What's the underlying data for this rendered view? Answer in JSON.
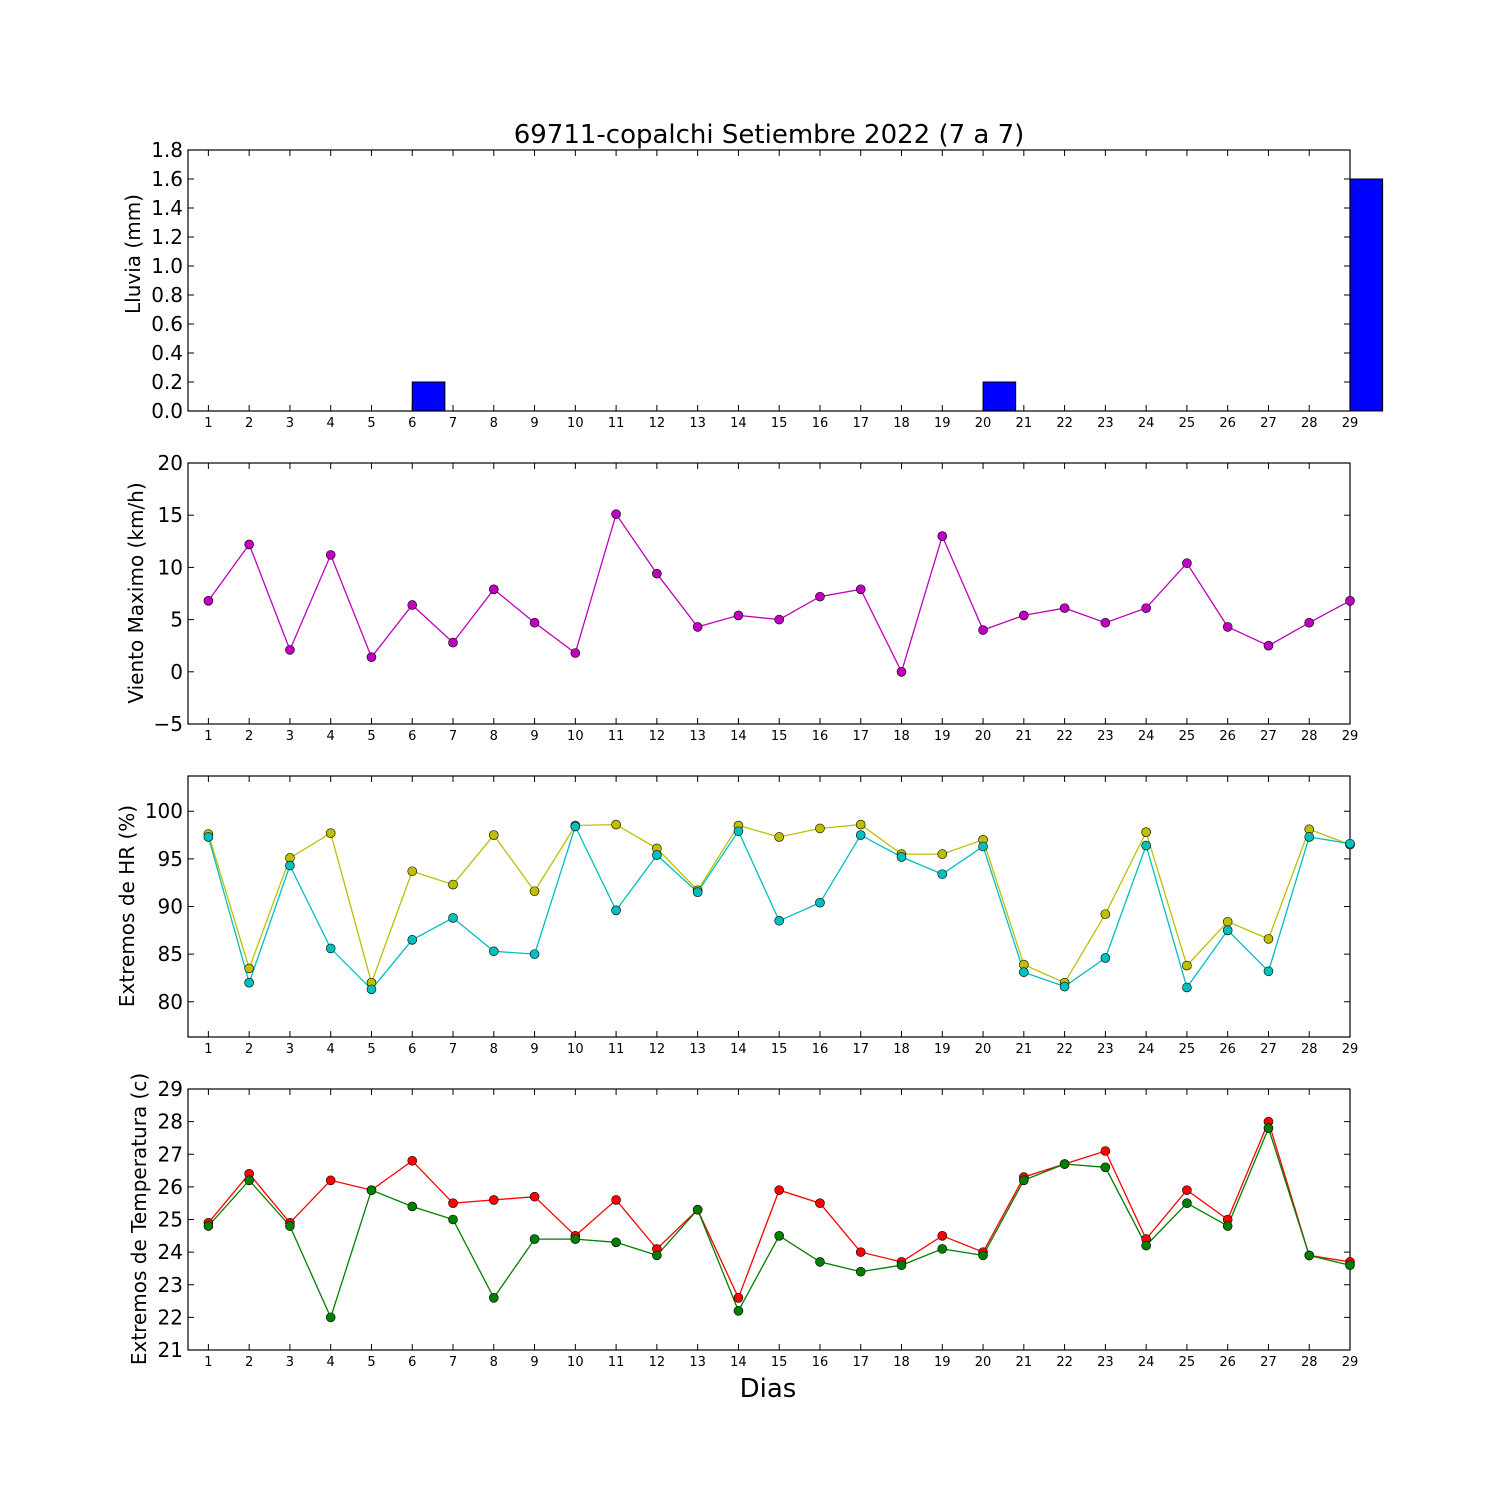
{
  "figure": {
    "title": "69711-copalchi Setiembre 2022  (7 a 7)",
    "xlabel": "Dias"
  },
  "chart_data": [
    {
      "type": "bar",
      "ylabel": "Lluvia (mm)",
      "categories": [
        1,
        2,
        3,
        4,
        5,
        6,
        7,
        8,
        9,
        10,
        11,
        12,
        13,
        14,
        15,
        16,
        17,
        18,
        19,
        20,
        21,
        22,
        23,
        24,
        25,
        26,
        27,
        28,
        29
      ],
      "ylim": [
        0,
        1.8
      ],
      "yticks": [
        "0.0",
        "0.2",
        "0.4",
        "0.6",
        "0.8",
        "1.0",
        "1.2",
        "1.4",
        "1.6",
        "1.8"
      ],
      "grid": false,
      "series": [
        {
          "color": "#0000ff",
          "values": [
            0,
            0,
            0,
            0,
            0,
            0.2,
            0,
            0,
            0,
            0,
            0,
            0,
            0,
            0,
            0,
            0,
            0,
            0,
            0,
            0.2,
            0,
            0,
            0,
            0,
            0,
            0,
            0,
            0,
            1.6
          ]
        }
      ]
    },
    {
      "type": "line",
      "ylabel": "Viento Maximo (km/h)",
      "categories": [
        1,
        2,
        3,
        4,
        5,
        6,
        7,
        8,
        9,
        10,
        11,
        12,
        13,
        14,
        15,
        16,
        17,
        18,
        19,
        20,
        21,
        22,
        23,
        24,
        25,
        26,
        27,
        28,
        29
      ],
      "ylim": [
        -5,
        20
      ],
      "yticks": [
        "−5",
        "0",
        "5",
        "10",
        "15",
        "20"
      ],
      "grid": false,
      "series": [
        {
          "color": "#bf00bf",
          "values": [
            6.8,
            12.2,
            2.1,
            11.2,
            1.4,
            6.4,
            2.8,
            7.9,
            4.7,
            1.8,
            15.1,
            9.4,
            4.3,
            5.4,
            5.0,
            7.2,
            7.9,
            0.0,
            13.0,
            4.0,
            5.4,
            6.1,
            4.7,
            6.1,
            10.4,
            4.3,
            2.5,
            4.7,
            6.8
          ]
        }
      ]
    },
    {
      "type": "line",
      "ylabel": "Extremos de HR (%)",
      "categories": [
        1,
        2,
        3,
        4,
        5,
        6,
        7,
        8,
        9,
        10,
        11,
        12,
        13,
        14,
        15,
        16,
        17,
        18,
        19,
        20,
        21,
        22,
        23,
        24,
        25,
        26,
        27,
        28,
        29
      ],
      "ylim": [
        76.3,
        103.7
      ],
      "yticks": [
        "80",
        "85",
        "90",
        "95",
        "100"
      ],
      "ytick_values": [
        80,
        85,
        90,
        95,
        100
      ],
      "grid": false,
      "series": [
        {
          "color": "#bfbf00",
          "values": [
            97.6,
            83.5,
            95.1,
            97.7,
            82.0,
            93.7,
            92.3,
            97.5,
            91.6,
            98.5,
            98.6,
            96.1,
            91.7,
            98.5,
            97.3,
            98.2,
            98.6,
            95.5,
            95.5,
            97.0,
            83.9,
            82.0,
            89.2,
            97.8,
            83.8,
            88.4,
            86.6,
            98.1,
            96.5
          ]
        },
        {
          "color": "#00bfbf",
          "values": [
            97.3,
            82.0,
            94.3,
            85.6,
            81.3,
            86.5,
            88.8,
            85.3,
            85.0,
            98.4,
            89.6,
            95.4,
            91.5,
            97.9,
            88.5,
            90.4,
            97.5,
            95.2,
            93.4,
            96.3,
            83.1,
            81.6,
            84.6,
            96.4,
            81.5,
            87.5,
            83.2,
            97.3,
            96.6
          ]
        }
      ]
    },
    {
      "type": "line",
      "ylabel": "Extremos de Temperatura (c)",
      "categories": [
        1,
        2,
        3,
        4,
        5,
        6,
        7,
        8,
        9,
        10,
        11,
        12,
        13,
        14,
        15,
        16,
        17,
        18,
        19,
        20,
        21,
        22,
        23,
        24,
        25,
        26,
        27,
        28,
        29
      ],
      "ylim": [
        21,
        29
      ],
      "yticks": [
        "21",
        "22",
        "23",
        "24",
        "25",
        "26",
        "27",
        "28",
        "29"
      ],
      "grid": false,
      "series": [
        {
          "color": "#ff0000",
          "values": [
            24.9,
            26.4,
            24.9,
            26.2,
            25.9,
            26.8,
            25.5,
            25.6,
            25.7,
            24.5,
            25.6,
            24.1,
            25.3,
            22.6,
            25.9,
            25.5,
            24.0,
            23.7,
            24.5,
            24.0,
            26.3,
            26.7,
            27.1,
            24.4,
            25.9,
            25.0,
            28.0,
            23.9,
            23.7
          ]
        },
        {
          "color": "#007f00",
          "values": [
            24.8,
            26.2,
            24.8,
            22.0,
            25.9,
            25.4,
            25.0,
            22.6,
            24.4,
            24.4,
            24.3,
            23.9,
            25.3,
            22.2,
            24.5,
            23.7,
            23.4,
            23.6,
            24.1,
            23.9,
            26.2,
            26.7,
            26.6,
            24.2,
            25.5,
            24.8,
            27.8,
            23.9,
            23.6
          ]
        }
      ]
    }
  ]
}
